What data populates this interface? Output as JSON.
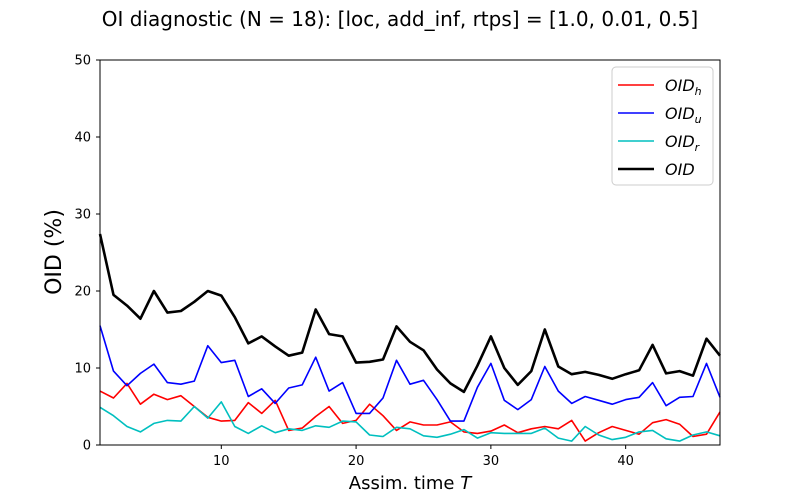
{
  "chart_data": {
    "type": "line",
    "title": "OI diagnostic  (N = 18): [loc, add_inf, rtps] = [1.0, 0.01, 0.5]",
    "xlabel_main": "Assim. time ",
    "xlabel_italic": "T",
    "ylabel": "OID (%)",
    "xlim": [
      1,
      47
    ],
    "ylim": [
      0,
      50
    ],
    "xticks": [
      10,
      20,
      30,
      40
    ],
    "yticks": [
      0,
      10,
      20,
      30,
      40,
      50
    ],
    "grid": false,
    "legend_position": "top-right",
    "x": [
      1,
      2,
      3,
      4,
      5,
      6,
      7,
      8,
      9,
      10,
      11,
      12,
      13,
      14,
      15,
      16,
      17,
      18,
      19,
      20,
      21,
      22,
      23,
      24,
      25,
      26,
      27,
      28,
      29,
      30,
      31,
      32,
      33,
      34,
      35,
      36,
      37,
      38,
      39,
      40,
      41,
      42,
      43,
      44,
      45,
      46,
      47
    ],
    "series": [
      {
        "name": "OID",
        "subscript": "h",
        "color": "#ff0000",
        "width": 1.6,
        "values": [
          7.0,
          6.1,
          8.0,
          5.3,
          6.6,
          5.9,
          6.4,
          5.0,
          3.6,
          3.1,
          3.2,
          5.5,
          4.1,
          5.8,
          1.9,
          2.2,
          3.7,
          5.0,
          2.8,
          3.2,
          5.3,
          3.8,
          1.9,
          3.0,
          2.6,
          2.6,
          3.0,
          1.7,
          1.5,
          1.8,
          2.6,
          1.6,
          2.1,
          2.4,
          2.1,
          3.2,
          0.5,
          1.6,
          2.4,
          1.9,
          1.4,
          2.9,
          3.3,
          2.7,
          1.1,
          1.4,
          4.3
        ]
      },
      {
        "name": "OID",
        "subscript": "u",
        "color": "#0000ff",
        "width": 1.6,
        "values": [
          15.5,
          9.6,
          7.7,
          9.3,
          10.5,
          8.1,
          7.9,
          8.3,
          12.9,
          10.7,
          11.0,
          6.3,
          7.3,
          5.4,
          7.4,
          7.8,
          11.4,
          7.0,
          8.1,
          4.1,
          4.1,
          6.1,
          11.0,
          7.9,
          8.4,
          5.9,
          3.1,
          3.1,
          7.5,
          10.6,
          5.8,
          4.6,
          5.9,
          10.2,
          7.0,
          5.4,
          6.3,
          5.8,
          5.3,
          5.9,
          6.2,
          8.1,
          5.1,
          6.2,
          6.3,
          10.6,
          6.2
        ]
      },
      {
        "name": "OID",
        "subscript": "r",
        "color": "#00bfbf",
        "width": 1.6,
        "values": [
          4.9,
          3.8,
          2.4,
          1.7,
          2.8,
          3.2,
          3.1,
          5.0,
          3.5,
          5.6,
          2.4,
          1.5,
          2.5,
          1.6,
          2.1,
          1.9,
          2.5,
          2.3,
          3.1,
          3.0,
          1.3,
          1.1,
          2.3,
          2.1,
          1.2,
          1.0,
          1.4,
          2.0,
          0.9,
          1.6,
          1.5,
          1.5,
          1.5,
          2.2,
          0.9,
          0.5,
          2.4,
          1.3,
          0.7,
          1.0,
          1.7,
          1.9,
          0.8,
          0.5,
          1.3,
          1.7,
          1.2
        ]
      },
      {
        "name": "OID",
        "subscript": "",
        "color": "#000000",
        "width": 2.6,
        "values": [
          27.4,
          19.5,
          18.1,
          16.4,
          20.0,
          17.2,
          17.4,
          18.6,
          20.0,
          19.4,
          16.6,
          13.2,
          14.1,
          12.8,
          11.6,
          12.0,
          17.6,
          14.4,
          14.1,
          10.7,
          10.8,
          11.1,
          15.4,
          13.4,
          12.3,
          9.8,
          8.0,
          6.9,
          10.3,
          14.1,
          10.0,
          7.8,
          9.6,
          15.0,
          10.2,
          9.2,
          9.5,
          9.1,
          8.6,
          9.2,
          9.7,
          13.0,
          9.3,
          9.6,
          9.0,
          13.8,
          11.6
        ]
      }
    ]
  }
}
